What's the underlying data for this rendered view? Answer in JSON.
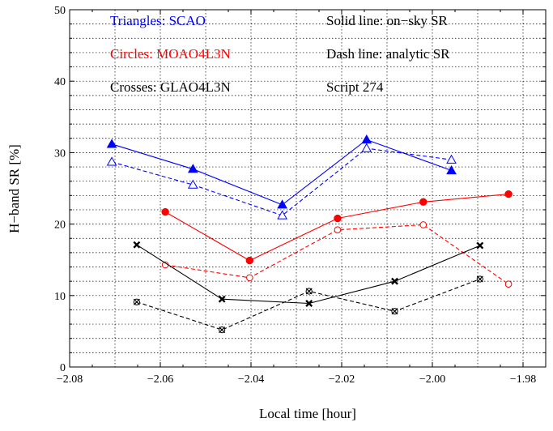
{
  "chart_data": {
    "type": "line",
    "title": "",
    "xlabel": "Local time [hour]",
    "ylabel": "H−band SR [%]",
    "xlim": [
      -2.08,
      -1.975
    ],
    "ylim": [
      0,
      50
    ],
    "x_ticks": [
      -2.08,
      -2.06,
      -2.04,
      -2.02,
      -2.0,
      -1.98
    ],
    "x_tick_labels": [
      "−2.08",
      "−2.06",
      "−2.04",
      "−2.02",
      "−2.00",
      "−1.98"
    ],
    "y_ticks": [
      0,
      10,
      20,
      30,
      40,
      50
    ],
    "y_tick_labels": [
      "0",
      "10",
      "20",
      "30",
      "40",
      "50"
    ],
    "grid": true,
    "annotations": [
      {
        "text": "Triangles: SCAO",
        "color": "#0000ff"
      },
      {
        "text": "Circles: MOAO4L3N",
        "color": "#ff0000"
      },
      {
        "text": "Crosses: GLAO4L3N",
        "color": "#000000"
      },
      {
        "text": "Solid line: on−sky SR",
        "color": "#000000"
      },
      {
        "text": "Dash  line: analytic SR",
        "color": "#000000"
      },
      {
        "text": "Script 274",
        "color": "#000000"
      }
    ],
    "series": [
      {
        "name": "SCAO on-sky",
        "color": "#0000ff",
        "marker": "triangle-filled",
        "dash": false,
        "points": [
          [
            -2.0707,
            31.2
          ],
          [
            -2.0528,
            27.7
          ],
          [
            -2.0331,
            22.7
          ],
          [
            -2.0145,
            31.8
          ],
          [
            -1.9958,
            27.5
          ]
        ]
      },
      {
        "name": "SCAO analytic",
        "color": "#0000ff",
        "marker": "triangle-open",
        "dash": true,
        "points": [
          [
            -2.0707,
            28.7
          ],
          [
            -2.0528,
            25.5
          ],
          [
            -2.0331,
            21.2
          ],
          [
            -2.0145,
            30.6
          ],
          [
            -1.9958,
            29.0
          ]
        ]
      },
      {
        "name": "MOAO4L3N on-sky",
        "color": "#ff0000",
        "marker": "circle-filled",
        "dash": false,
        "points": [
          [
            -2.0589,
            21.7
          ],
          [
            -2.0403,
            14.9
          ],
          [
            -2.0209,
            20.8
          ],
          [
            -2.002,
            23.1
          ],
          [
            -1.9832,
            24.2
          ]
        ]
      },
      {
        "name": "MOAO4L3N analytic",
        "color": "#ff0000",
        "marker": "circle-open",
        "dash": true,
        "points": [
          [
            -2.0589,
            14.3
          ],
          [
            -2.0403,
            12.5
          ],
          [
            -2.0209,
            19.2
          ],
          [
            -2.002,
            19.9
          ],
          [
            -1.9832,
            11.6
          ]
        ]
      },
      {
        "name": "GLAO4L3N on-sky",
        "color": "#000000",
        "marker": "cross-filled",
        "dash": false,
        "points": [
          [
            -2.0652,
            17.1
          ],
          [
            -2.0464,
            9.5
          ],
          [
            -2.0272,
            8.9
          ],
          [
            -2.0083,
            12.0
          ],
          [
            -1.9895,
            17.0
          ]
        ]
      },
      {
        "name": "GLAO4L3N analytic",
        "color": "#000000",
        "marker": "cross-open",
        "dash": true,
        "points": [
          [
            -2.0652,
            9.1
          ],
          [
            -2.0464,
            5.2
          ],
          [
            -2.0272,
            10.6
          ],
          [
            -2.0083,
            7.8
          ],
          [
            -1.9895,
            12.3
          ]
        ]
      }
    ]
  }
}
